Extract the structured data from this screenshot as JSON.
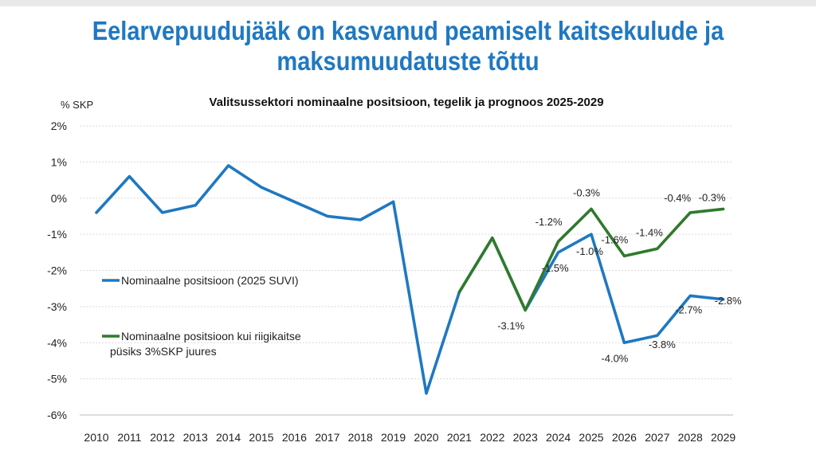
{
  "page": {
    "title_line1": "Eelarvepuudujääk on kasvanud peamiselt kaitsekulude ja",
    "title_line2": "maksumuudatuste tõttu"
  },
  "chart_data": {
    "type": "line",
    "title": "Valitsussektori nominaalne positsioon, tegelik ja prognoos 2025-2029",
    "ylabel": "% SKP",
    "xlabel": "",
    "ylim": [
      -6,
      2
    ],
    "yticks": [
      2,
      1,
      0,
      -1,
      -2,
      -3,
      -4,
      -5,
      -6
    ],
    "ytick_labels": [
      "2%",
      "1%",
      "0%",
      "-1%",
      "-2%",
      "-3%",
      "-4%",
      "-5%",
      "-6%"
    ],
    "x": [
      "2010",
      "2011",
      "2012",
      "2013",
      "2014",
      "2015",
      "2016",
      "2017",
      "2018",
      "2019",
      "2020",
      "2021",
      "2022",
      "2023",
      "2024",
      "2025",
      "2026",
      "2027",
      "2028",
      "2029"
    ],
    "grid": true,
    "legend_position": "left",
    "series": [
      {
        "name": "Nominaalne positsioon (2025 SUVI)",
        "color": "#1f78c1",
        "values": [
          -0.4,
          0.6,
          -0.4,
          -0.2,
          0.9,
          0.3,
          -0.1,
          -0.5,
          -0.6,
          -0.1,
          -5.4,
          -2.6,
          -1.1,
          -3.1,
          -1.5,
          -1.0,
          -4.0,
          -3.8,
          -2.7,
          -2.8
        ],
        "labels": [
          null,
          null,
          null,
          null,
          null,
          null,
          null,
          null,
          null,
          null,
          null,
          null,
          null,
          "-3.1%",
          "-1.5%",
          "-1.0%",
          "-4.0%",
          "-3.8%",
          "-2.7%",
          "-2.8%"
        ]
      },
      {
        "name": "Nominaalne positsioon kui riigikaitse püsiks 3%SKP juures",
        "color": "#2f7a2b",
        "values": [
          null,
          null,
          null,
          null,
          null,
          null,
          null,
          null,
          null,
          null,
          null,
          -2.6,
          -1.1,
          -3.1,
          -1.2,
          -0.3,
          -1.6,
          -1.4,
          -0.4,
          -0.3
        ],
        "labels": [
          null,
          null,
          null,
          null,
          null,
          null,
          null,
          null,
          null,
          null,
          null,
          null,
          null,
          null,
          "-1.2%",
          "-0.3%",
          "-1.6%",
          "-1.4%",
          "-0.4%",
          "-0.3%"
        ]
      }
    ]
  }
}
